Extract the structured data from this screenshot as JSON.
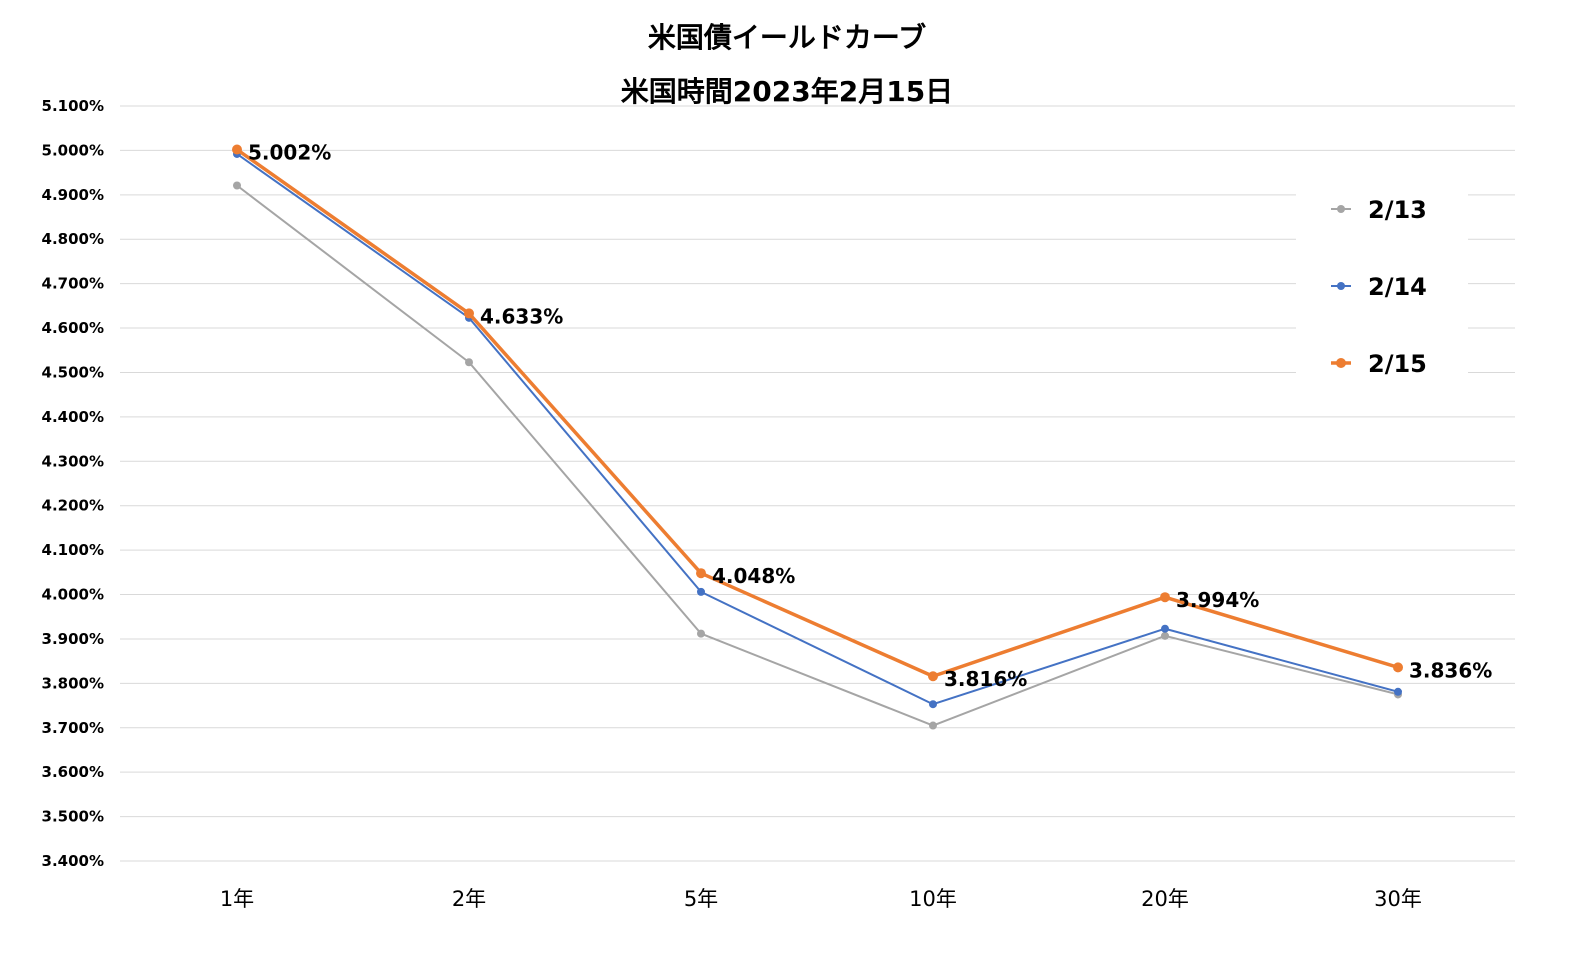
{
  "chart_data": {
    "type": "line",
    "title": "米国債イールドカーブ",
    "subtitle": "米国時間2023年2月15日",
    "categories": [
      "1年",
      "2年",
      "5年",
      "10年",
      "20年",
      "30年"
    ],
    "ylim": [
      3.4,
      5.1
    ],
    "ytick_step": 0.1,
    "ytick_labels": [
      "3.400%",
      "3.500%",
      "3.600%",
      "3.700%",
      "3.800%",
      "3.900%",
      "4.000%",
      "4.100%",
      "4.200%",
      "4.300%",
      "4.400%",
      "4.500%",
      "4.600%",
      "4.700%",
      "4.800%",
      "4.900%",
      "5.000%",
      "5.100%"
    ],
    "grid": true,
    "legend_position": "right",
    "series": [
      {
        "name": "2/13",
        "color": "#a5a5a5",
        "values": [
          4.921,
          4.523,
          3.912,
          3.705,
          3.907,
          3.775
        ]
      },
      {
        "name": "2/14",
        "color": "#4472c4",
        "values": [
          4.992,
          4.623,
          4.006,
          3.753,
          3.923,
          3.781
        ]
      },
      {
        "name": "2/15",
        "color": "#ed7d31",
        "values": [
          5.002,
          4.633,
          4.048,
          3.816,
          3.994,
          3.836
        ],
        "data_labels": [
          "5.002%",
          "4.633%",
          "4.048%",
          "3.816%",
          "3.994%",
          "3.836%"
        ]
      }
    ]
  }
}
